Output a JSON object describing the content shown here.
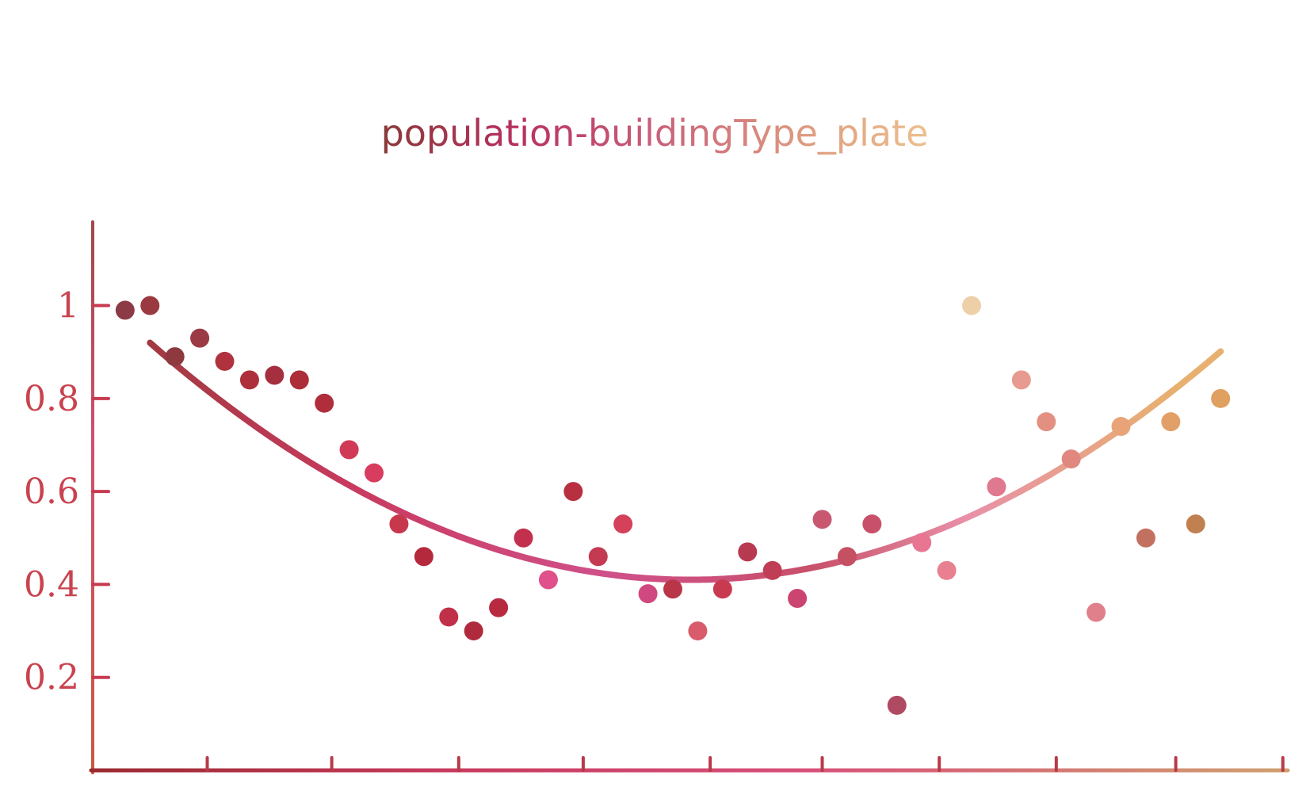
{
  "chart_data": {
    "type": "scatter",
    "title": "population-buildingType_plate",
    "xlabel": "",
    "ylabel": "",
    "ylim": [
      0,
      1.18
    ],
    "xlim": [
      0,
      48
    ],
    "y_ticks": [
      {
        "value": 0.2,
        "label": "0.2"
      },
      {
        "value": 0.4,
        "label": "0.4"
      },
      {
        "value": 0.6,
        "label": "0.6"
      },
      {
        "value": 0.8,
        "label": "0.8"
      },
      {
        "value": 1.0,
        "label": "1"
      }
    ],
    "x_ticks": [
      4.6,
      9.6,
      14.7,
      19.7,
      24.8,
      29.3,
      34.0,
      38.7,
      43.5,
      47.8
    ],
    "points": [
      {
        "x": 1.3,
        "y": 0.99,
        "color": "#8b3a46"
      },
      {
        "x": 2.3,
        "y": 1.0,
        "color": "#9a3a40"
      },
      {
        "x": 3.3,
        "y": 0.89,
        "color": "#8e3840"
      },
      {
        "x": 4.3,
        "y": 0.93,
        "color": "#9b3a45"
      },
      {
        "x": 5.3,
        "y": 0.88,
        "color": "#b0323f"
      },
      {
        "x": 6.3,
        "y": 0.84,
        "color": "#ad2f3c"
      },
      {
        "x": 7.3,
        "y": 0.85,
        "color": "#a52f3e"
      },
      {
        "x": 8.3,
        "y": 0.84,
        "color": "#ab2e38"
      },
      {
        "x": 9.3,
        "y": 0.79,
        "color": "#b02e3c"
      },
      {
        "x": 10.3,
        "y": 0.69,
        "color": "#d03a56"
      },
      {
        "x": 11.3,
        "y": 0.64,
        "color": "#d83c5e"
      },
      {
        "x": 12.3,
        "y": 0.53,
        "color": "#c8384c"
      },
      {
        "x": 13.3,
        "y": 0.46,
        "color": "#b42a3c"
      },
      {
        "x": 14.3,
        "y": 0.33,
        "color": "#c03048"
      },
      {
        "x": 15.3,
        "y": 0.3,
        "color": "#b02a3e"
      },
      {
        "x": 16.3,
        "y": 0.35,
        "color": "#b82a40"
      },
      {
        "x": 17.3,
        "y": 0.5,
        "color": "#c3304e"
      },
      {
        "x": 18.3,
        "y": 0.41,
        "color": "#e0508a"
      },
      {
        "x": 19.3,
        "y": 0.6,
        "color": "#b83040"
      },
      {
        "x": 20.3,
        "y": 0.46,
        "color": "#c43a52"
      },
      {
        "x": 21.3,
        "y": 0.53,
        "color": "#d5405a"
      },
      {
        "x": 22.3,
        "y": 0.38,
        "color": "#d04880"
      },
      {
        "x": 23.3,
        "y": 0.39,
        "color": "#b83648"
      },
      {
        "x": 24.3,
        "y": 0.3,
        "color": "#d85c6c"
      },
      {
        "x": 25.3,
        "y": 0.39,
        "color": "#c83a50"
      },
      {
        "x": 26.3,
        "y": 0.47,
        "color": "#b83a50"
      },
      {
        "x": 27.3,
        "y": 0.43,
        "color": "#bf3d55"
      },
      {
        "x": 28.3,
        "y": 0.37,
        "color": "#cc4470"
      },
      {
        "x": 29.3,
        "y": 0.54,
        "color": "#c85870"
      },
      {
        "x": 30.3,
        "y": 0.46,
        "color": "#c45062"
      },
      {
        "x": 31.3,
        "y": 0.53,
        "color": "#c8506a"
      },
      {
        "x": 32.3,
        "y": 0.14,
        "color": "#b04a62"
      },
      {
        "x": 33.3,
        "y": 0.49,
        "color": "#e87592"
      },
      {
        "x": 34.3,
        "y": 0.43,
        "color": "#e88090"
      },
      {
        "x": 35.3,
        "y": 1.0,
        "color": "#eed0a8"
      },
      {
        "x": 36.3,
        "y": 0.61,
        "color": "#e07890"
      },
      {
        "x": 37.3,
        "y": 0.84,
        "color": "#e89a90"
      },
      {
        "x": 38.3,
        "y": 0.75,
        "color": "#e39082"
      },
      {
        "x": 39.3,
        "y": 0.67,
        "color": "#e08880"
      },
      {
        "x": 40.3,
        "y": 0.34,
        "color": "#e0808a"
      },
      {
        "x": 41.3,
        "y": 0.74,
        "color": "#e8a478"
      },
      {
        "x": 42.3,
        "y": 0.5,
        "color": "#c27060"
      },
      {
        "x": 43.3,
        "y": 0.75,
        "color": "#e2a068"
      },
      {
        "x": 44.3,
        "y": 0.53,
        "color": "#c08050"
      },
      {
        "x": 45.3,
        "y": 0.8,
        "color": "#e0a060"
      }
    ],
    "trend": {
      "type": "quadratic",
      "x_vertex": 24.0,
      "y_vertex": 0.41,
      "a": 0.001083,
      "x_start": 2.3,
      "x_end": 45.3
    },
    "grid": false,
    "legend": "none"
  },
  "colors": {
    "axis": "#b54a4a",
    "tick_label": "#c9434f",
    "trend_start": "#9a3a40",
    "trend_mid": "#d95a8a",
    "trend_end": "#e8b070",
    "title_start": "#8a3a3a",
    "title_mid": "#c24072",
    "title_end": "#e8c08a"
  }
}
